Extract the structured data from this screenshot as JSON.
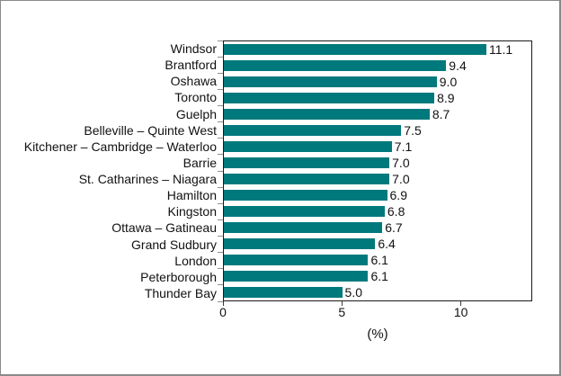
{
  "chart_data": {
    "type": "bar",
    "orientation": "horizontal",
    "title": "",
    "categories": [
      "Windsor",
      "Brantford",
      "Oshawa",
      "Toronto",
      "Guelph",
      "Belleville – Quinte West",
      "Kitchener – Cambridge – Waterloo",
      "Barrie",
      "St. Catharines – Niagara",
      "Hamilton",
      "Kingston",
      "Ottawa – Gatineau",
      "Grand Sudbury",
      "London",
      "Peterborough",
      "Thunder Bay"
    ],
    "values": [
      11.1,
      9.4,
      9.0,
      8.9,
      8.7,
      7.5,
      7.1,
      7.0,
      7.0,
      6.9,
      6.8,
      6.7,
      6.4,
      6.1,
      6.1,
      5.0
    ],
    "value_labels": [
      "11.1",
      "9.4",
      "9.0",
      "8.9",
      "8.7",
      "7.5",
      "7.1",
      "7.0",
      "7.0",
      "6.9",
      "6.8",
      "6.7",
      "6.4",
      "6.1",
      "6.1",
      "5.0"
    ],
    "xlabel": "(%)",
    "ylabel": "",
    "xlim": [
      0,
      13
    ],
    "xticks": [
      0,
      5,
      10
    ],
    "xtick_labels": [
      "0",
      "5",
      "10"
    ],
    "grid": false,
    "legend_position": "none",
    "colors": {
      "bar": "#00797D",
      "axis_border": "#1a1a1a",
      "left_tick": "#8f8f8f",
      "bottom_tick": "#3a3a3a",
      "frame_border": "#8a8a8a",
      "text": "#111111"
    }
  }
}
